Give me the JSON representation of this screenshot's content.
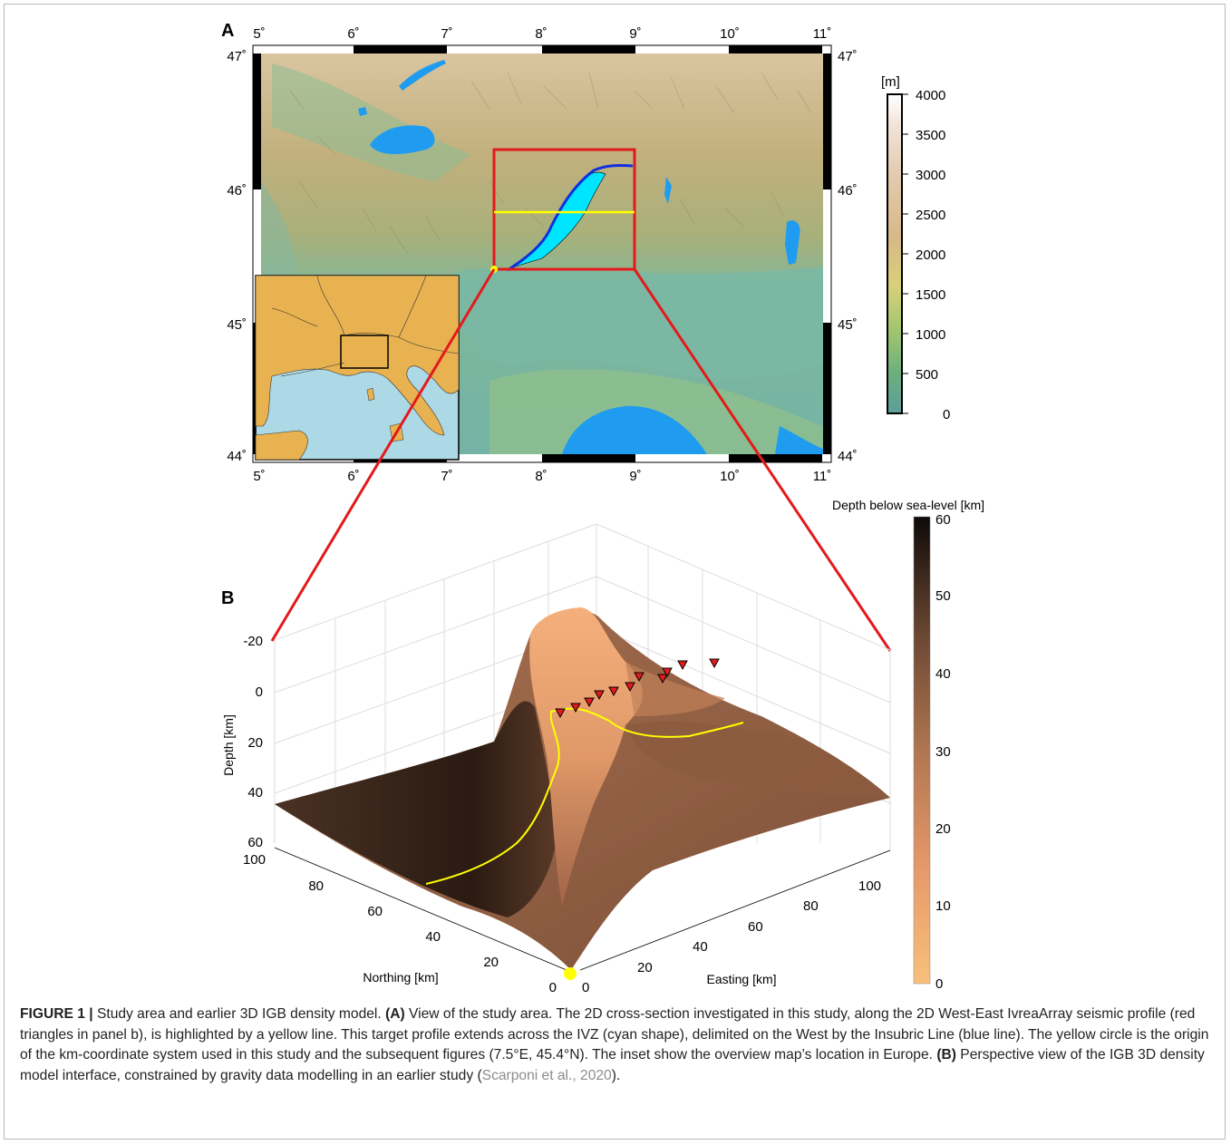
{
  "panel_a": {
    "label": "A",
    "lon_ticks_top": [
      "5˚",
      "6˚",
      "7˚",
      "8˚",
      "9˚",
      "10˚",
      "11˚"
    ],
    "lon_ticks_bottom": [
      "5˚",
      "6˚",
      "7˚",
      "8˚",
      "9˚",
      "10˚",
      "11˚"
    ],
    "lat_ticks_left": [
      "47˚",
      "46˚",
      "45˚",
      "44˚"
    ],
    "lat_ticks_right": [
      "47˚",
      "46˚",
      "45˚",
      "44˚"
    ],
    "colorbar": {
      "unit": "[m]",
      "ticks": [
        "4000",
        "3500",
        "3000",
        "2500",
        "2000",
        "1500",
        "1000",
        "500",
        "0"
      ]
    },
    "colors": {
      "sea": "#1f9cf0",
      "lowland": "#6fb6a0",
      "alps": "#c9b58a",
      "study_box": "#e31a1c",
      "profile": "#ffff00",
      "insubric_line": "#1030e0",
      "ivz": "#00e5ff"
    }
  },
  "panel_b": {
    "label": "B",
    "depth_ticks": [
      "-20",
      "0",
      "20",
      "40",
      "60"
    ],
    "depth_label": "Depth [km]",
    "northing_ticks": [
      "100",
      "80",
      "60",
      "40",
      "20",
      "0"
    ],
    "northing_label": "Northing [km]",
    "easting_ticks": [
      "0",
      "20",
      "40",
      "60",
      "80",
      "100"
    ],
    "easting_label": "Easting [km]",
    "colorbar": {
      "title": "Depth below sea-level [km]",
      "ticks": [
        "60",
        "50",
        "40",
        "30",
        "20",
        "10",
        "0"
      ]
    },
    "stations": 12
  },
  "caption": {
    "figure_label": "FIGURE 1 |",
    "intro": " Study area and earlier 3D IGB density model. ",
    "a_label": "(A)",
    "a_text": " View of the study area. The 2D cross-section investigated in this study, along the 2D West-East IvreaArray seismic profile (red triangles in panel b), is highlighted by a yellow line. This target profile extends across the IVZ (cyan shape), delimited on the West by the Insubric Line (blue line). The yellow circle is the origin of the km-coordinate system used in this study and the subsequent figures (7.5°E, 45.4°N). The inset show the overview map’s location in Europe. ",
    "b_label": "(B)",
    "b_text": " Perspective view of the IGB 3D density model interface, constrained by gravity data modelling in an earlier study (",
    "citation": "Scarponi et al., 2020",
    "end": ")."
  }
}
